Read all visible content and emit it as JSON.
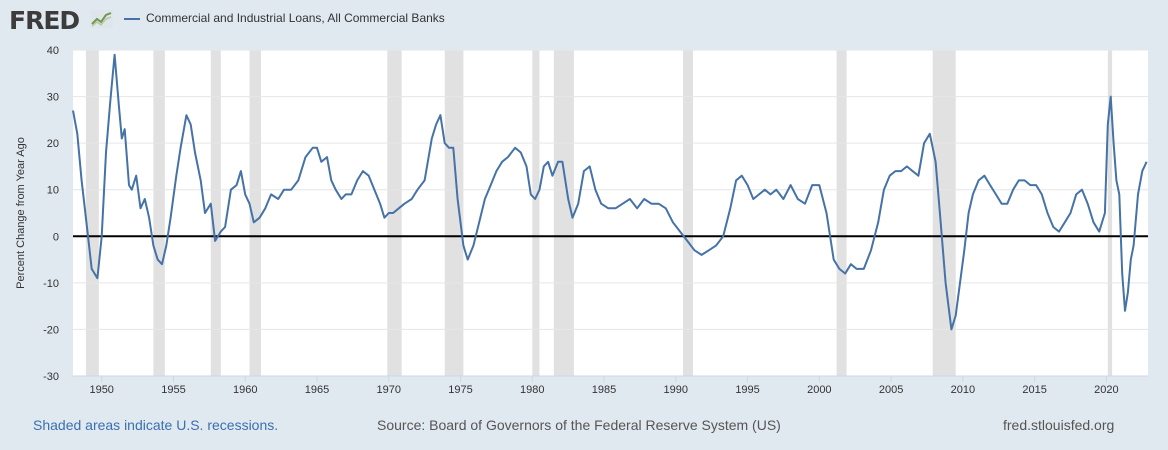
{
  "header": {
    "logo": "FRED",
    "logo_icon": "chart-line-icon",
    "series_label": "Commercial and Industrial Loans, All Commercial Banks"
  },
  "footer": {
    "recession_note": "Shaded areas indicate U.S. recessions.",
    "source": "Source: Board of Governors of the Federal Reserve System (US)",
    "site": "fred.stlouisfed.org"
  },
  "colors": {
    "line": "#4572a7",
    "recession": "#e1e1e1",
    "background": "#e1e9f0",
    "plot": "#ffffff"
  },
  "chart_data": {
    "type": "line",
    "xlim": [
      1948.0,
      2022.9
    ],
    "ylim": [
      -30,
      40
    ],
    "ylabel": "Percent Change from Year Ago",
    "x_ticks": [
      1950,
      1955,
      1960,
      1965,
      1970,
      1975,
      1980,
      1985,
      1990,
      1995,
      2000,
      2005,
      2010,
      2015,
      2020
    ],
    "y_ticks": [
      -30,
      -20,
      -10,
      0,
      10,
      20,
      30,
      40
    ],
    "grid": "horizontal",
    "zero_line": true,
    "recessions": [
      [
        1948.9,
        1949.8
      ],
      [
        1953.6,
        1954.4
      ],
      [
        1957.6,
        1958.3
      ],
      [
        1960.3,
        1961.1
      ],
      [
        1969.9,
        1970.9
      ],
      [
        1973.9,
        1975.2
      ],
      [
        1980.0,
        1980.5
      ],
      [
        1981.5,
        1982.9
      ],
      [
        1990.5,
        1991.2
      ],
      [
        2001.2,
        2001.9
      ],
      [
        2007.9,
        2009.5
      ],
      [
        2020.1,
        2020.4
      ]
    ],
    "series": [
      {
        "name": "Commercial and Industrial Loans, All Commercial Banks",
        "x": [
          1948.0,
          1948.3,
          1948.6,
          1948.9,
          1949.3,
          1949.7,
          1950.0,
          1950.3,
          1950.6,
          1950.9,
          1951.2,
          1951.4,
          1951.6,
          1951.9,
          1952.1,
          1952.4,
          1952.7,
          1953.0,
          1953.3,
          1953.6,
          1953.9,
          1954.2,
          1954.5,
          1954.8,
          1955.2,
          1955.5,
          1955.9,
          1956.2,
          1956.5,
          1956.9,
          1957.2,
          1957.6,
          1957.9,
          1958.3,
          1958.6,
          1959.0,
          1959.4,
          1959.7,
          1960.0,
          1960.3,
          1960.6,
          1961.0,
          1961.4,
          1961.8,
          1962.3,
          1962.7,
          1963.2,
          1963.7,
          1964.2,
          1964.7,
          1965.0,
          1965.3,
          1965.7,
          1966.0,
          1966.3,
          1966.7,
          1967.0,
          1967.4,
          1967.8,
          1968.2,
          1968.6,
          1969.0,
          1969.4,
          1969.7,
          1970.0,
          1970.3,
          1970.7,
          1971.1,
          1971.6,
          1972.0,
          1972.5,
          1973.0,
          1973.3,
          1973.6,
          1973.9,
          1974.2,
          1974.5,
          1974.8,
          1975.2,
          1975.5,
          1975.9,
          1976.3,
          1976.7,
          1977.1,
          1977.5,
          1977.9,
          1978.3,
          1978.8,
          1979.2,
          1979.6,
          1979.9,
          1980.2,
          1980.5,
          1980.8,
          1981.1,
          1981.4,
          1981.8,
          1982.1,
          1982.5,
          1982.8,
          1983.2,
          1983.6,
          1984.0,
          1984.4,
          1984.8,
          1985.3,
          1985.8,
          1986.3,
          1986.8,
          1987.3,
          1987.8,
          1988.3,
          1988.8,
          1989.3,
          1989.8,
          1990.3,
          1990.8,
          1991.3,
          1991.8,
          1992.3,
          1992.8,
          1993.3,
          1993.8,
          1994.2,
          1994.6,
          1995.0,
          1995.4,
          1995.8,
          1996.2,
          1996.6,
          1997.0,
          1997.5,
          1998.0,
          1998.5,
          1999.0,
          1999.5,
          2000.0,
          2000.5,
          2001.0,
          2001.4,
          2001.8,
          2002.2,
          2002.6,
          2003.1,
          2003.6,
          2004.1,
          2004.5,
          2004.9,
          2005.3,
          2005.7,
          2006.1,
          2006.5,
          2006.9,
          2007.3,
          2007.7,
          2008.1,
          2008.4,
          2008.8,
          2009.2,
          2009.5,
          2009.8,
          2010.1,
          2010.4,
          2010.7,
          2011.1,
          2011.5,
          2011.9,
          2012.3,
          2012.7,
          2013.1,
          2013.5,
          2013.9,
          2014.3,
          2014.7,
          2015.1,
          2015.5,
          2015.9,
          2016.3,
          2016.7,
          2017.1,
          2017.5,
          2017.9,
          2018.3,
          2018.7,
          2019.1,
          2019.5,
          2019.9,
          2020.1,
          2020.3,
          2020.5,
          2020.7,
          2020.9,
          2021.1,
          2021.3,
          2021.5,
          2021.7,
          2021.9,
          2022.2,
          2022.5,
          2022.8
        ],
        "values": [
          27,
          22,
          12,
          4,
          -7,
          -9,
          0,
          18,
          29,
          39,
          28,
          21,
          23,
          11,
          10,
          13,
          6,
          8,
          4,
          -2,
          -5,
          -6,
          -2,
          4,
          13,
          19,
          26,
          24,
          18,
          12,
          5,
          7,
          -1,
          1,
          2,
          10,
          11,
          14,
          9,
          7,
          3,
          4,
          6,
          9,
          8,
          10,
          10,
          12,
          17,
          19,
          19,
          16,
          17,
          12,
          10,
          8,
          9,
          9,
          12,
          14,
          13,
          10,
          7,
          4,
          5,
          5,
          6,
          7,
          8,
          10,
          12,
          21,
          24,
          26,
          20,
          19,
          19,
          8,
          -2,
          -5,
          -2,
          3,
          8,
          11,
          14,
          16,
          17,
          19,
          18,
          15,
          9,
          8,
          10,
          15,
          16,
          13,
          16,
          16,
          8,
          4,
          7,
          14,
          15,
          10,
          7,
          6,
          6,
          7,
          8,
          6,
          8,
          7,
          7,
          6,
          3,
          1,
          -1,
          -3,
          -4,
          -3,
          -2,
          0,
          6,
          12,
          13,
          11,
          8,
          9,
          10,
          9,
          10,
          8,
          11,
          8,
          7,
          11,
          11,
          5,
          -5,
          -7,
          -8,
          -6,
          -7,
          -7,
          -3,
          3,
          10,
          13,
          14,
          14,
          15,
          14,
          13,
          20,
          22,
          16,
          5,
          -10,
          -20,
          -17,
          -10,
          -3,
          5,
          9,
          12,
          13,
          11,
          9,
          7,
          7,
          10,
          12,
          12,
          11,
          11,
          9,
          5,
          2,
          1,
          3,
          5,
          9,
          10,
          7,
          3,
          1,
          5,
          24,
          30,
          20,
          12,
          9,
          -8,
          -16,
          -12,
          -5,
          -2,
          9,
          14,
          16
        ]
      }
    ]
  }
}
